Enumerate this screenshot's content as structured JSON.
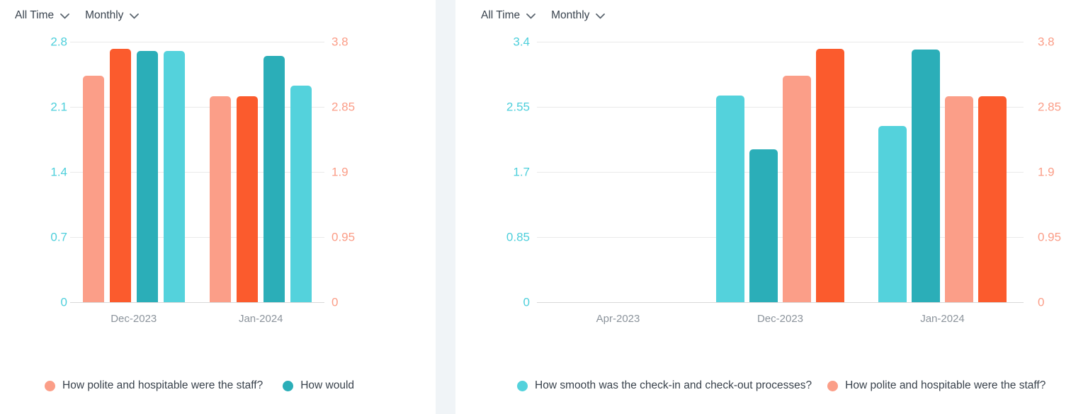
{
  "chart_data": [
    {
      "type": "bar",
      "filters": [
        {
          "label": "All Time"
        },
        {
          "label": "Monthly"
        }
      ],
      "categories": [
        "Dec-2023",
        "Jan-2024"
      ],
      "left_axis": {
        "ticks": [
          "2.8",
          "2.1",
          "1.4",
          "0.7",
          "0"
        ],
        "ylim": [
          0,
          2.8
        ],
        "color": "#4dcfdb"
      },
      "right_axis": {
        "ticks": [
          "3.8",
          "2.85",
          "1.9",
          "0.95",
          "0"
        ],
        "ylim": [
          0,
          3.8
        ],
        "color": "#fb9d87"
      },
      "series": [
        {
          "id": "polite-hospitable-staff",
          "color": "#FB9E88",
          "axis": "right",
          "values": [
            3.3,
            3.0
          ]
        },
        {
          "id": "orange-red-series",
          "color": "#FB5B2D",
          "axis": "right",
          "values": [
            3.7,
            3.0
          ]
        },
        {
          "id": "teal-series",
          "color": "#2BAEB8",
          "axis": "left",
          "values": [
            2.7,
            2.65
          ]
        },
        {
          "id": "light-cyan-series",
          "color": "#54D2DC",
          "axis": "left",
          "values": [
            2.7,
            2.33
          ]
        }
      ],
      "legend": [
        {
          "color": "#FB9E88",
          "label": "How polite and hospitable were the staff?"
        },
        {
          "color": "#2BAEB8",
          "label": "How would"
        }
      ],
      "legend_position": "bottom",
      "grid": true
    },
    {
      "type": "bar",
      "filters": [
        {
          "label": "All Time"
        },
        {
          "label": "Monthly"
        }
      ],
      "categories": [
        "Apr-2023",
        "Dec-2023",
        "Jan-2024"
      ],
      "left_axis": {
        "ticks": [
          "3.4",
          "2.55",
          "1.7",
          "0.85",
          "0"
        ],
        "ylim": [
          0,
          3.4
        ],
        "color": "#4dcfdb"
      },
      "right_axis": {
        "ticks": [
          "3.8",
          "2.85",
          "1.9",
          "0.95",
          "0"
        ],
        "ylim": [
          0,
          3.8
        ],
        "color": "#fb9d87"
      },
      "series": [
        {
          "id": "smooth-checkin-checkout",
          "color": "#54D2DC",
          "axis": "left",
          "values": [
            null,
            2.7,
            2.3
          ]
        },
        {
          "id": "teal-series",
          "color": "#2BAEB8",
          "axis": "left",
          "values": [
            null,
            2.0,
            3.3
          ]
        },
        {
          "id": "polite-hospitable-staff",
          "color": "#FB9E88",
          "axis": "right",
          "values": [
            null,
            3.3,
            3.0
          ]
        },
        {
          "id": "orange-red-series",
          "color": "#FB5B2D",
          "axis": "right",
          "values": [
            null,
            3.7,
            3.0
          ]
        }
      ],
      "legend": [
        {
          "color": "#54D2DC",
          "label": "How smooth was the check-in and check-out processes?"
        },
        {
          "color": "#FB9E88",
          "label": "How polite and hospitable were the staff?"
        }
      ],
      "legend_position": "bottom",
      "grid": true
    }
  ]
}
